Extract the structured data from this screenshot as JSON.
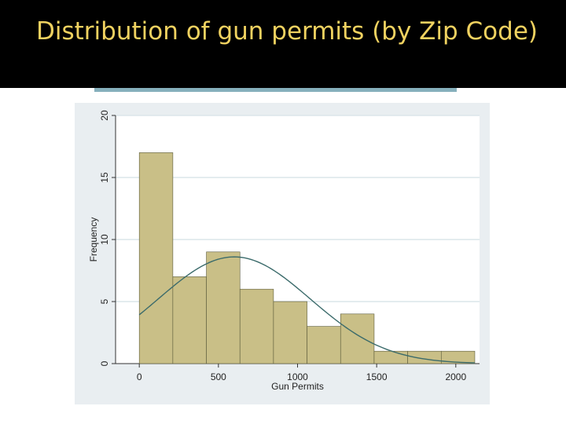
{
  "slide": {
    "title": "Distribution of gun permits (by Zip Code)"
  },
  "colors": {
    "title_text": "#f0d260",
    "title_bar": "#000000",
    "accent_rule": "#86b0bc",
    "bar_fill": "#c9bf87",
    "bar_stroke": "#5a5a3a",
    "curve": "#3b6b6b",
    "plot_bg": "#ffffff",
    "outer_bg": "#e9eef1",
    "grid": "#dce6ea"
  },
  "chart_data": {
    "type": "bar",
    "title": "",
    "xlabel": "Gun Permits",
    "ylabel": "Frequency",
    "bin_edges": [
      0,
      212,
      424,
      636,
      848,
      1060,
      1272,
      1484,
      1696,
      1908,
      2120
    ],
    "values": [
      17,
      7,
      9,
      6,
      5,
      3,
      4,
      1,
      1,
      1
    ],
    "xlim": [
      -150,
      2150
    ],
    "ylim": [
      0,
      20
    ],
    "xticks": [
      0,
      500,
      1000,
      1500,
      2000
    ],
    "xtick_labels": [
      "0",
      "500",
      "1000",
      "1500",
      "2000"
    ],
    "yticks": [
      0,
      5,
      10,
      15,
      20
    ],
    "ytick_labels": [
      "0",
      "5",
      "10",
      "15",
      "20"
    ],
    "grid": true,
    "overlay_curve": {
      "type": "normal_density",
      "mean": 600,
      "sd": 480,
      "peak": 8.6
    }
  }
}
